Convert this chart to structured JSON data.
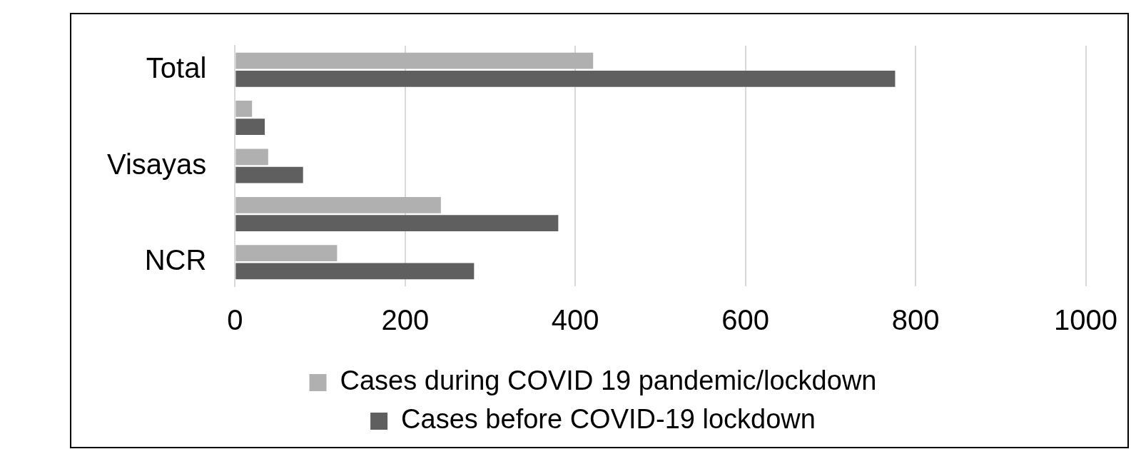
{
  "chart_data": {
    "type": "bar",
    "orientation": "horizontal",
    "categories": [
      "Total",
      null,
      "Visayas",
      null,
      "NCR"
    ],
    "series": [
      {
        "name": "Cases during COVID 19 pandemic/lockdown",
        "color": "#b0b0b0",
        "values": [
          421,
          20,
          39,
          242,
          120
        ]
      },
      {
        "name": "Cases before COVID-19 lockdown",
        "color": "#5f5f5f",
        "values": [
          776,
          35,
          80,
          380,
          281
        ]
      }
    ],
    "xlim": [
      0,
      1000
    ],
    "xticks": [
      0,
      200,
      400,
      600,
      800,
      1000
    ],
    "grid": "x",
    "legend": "bottom"
  }
}
